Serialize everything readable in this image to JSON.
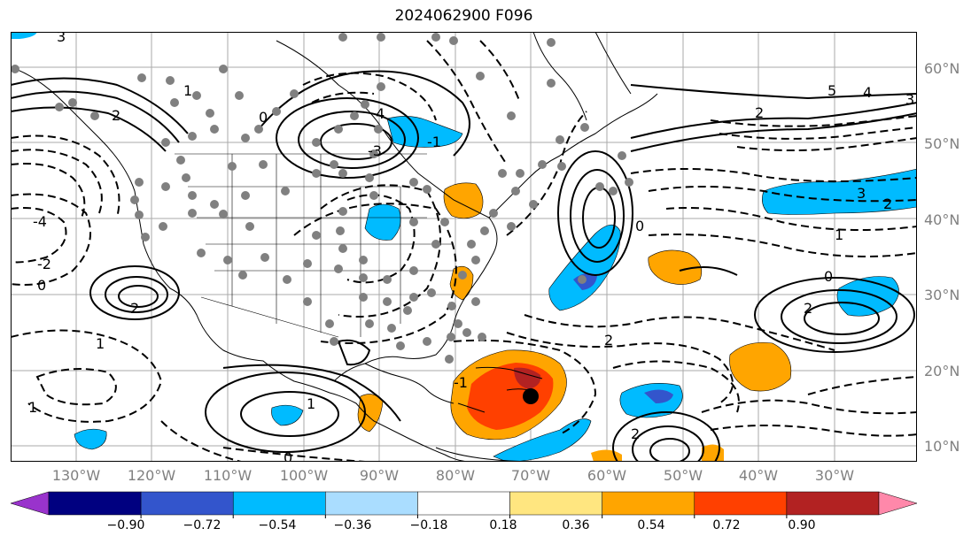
{
  "title": "2024062900 F096",
  "lat_labels": [
    "60°N",
    "50°N",
    "40°N",
    "30°N",
    "20°N",
    "10°N"
  ],
  "lon_labels": [
    "130°W",
    "120°W",
    "110°W",
    "100°W",
    "90°W",
    "80°W",
    "70°W",
    "60°W",
    "50°W",
    "40°W",
    "30°W"
  ],
  "colorbar": {
    "ticks": [
      "−0.90",
      "−0.72",
      "−0.54",
      "−0.36",
      "−0.18",
      "0.18",
      "0.36",
      "0.54",
      "0.72",
      "0.90"
    ],
    "colors": [
      "#9933cc",
      "#000080",
      "#3355cc",
      "#00bbff",
      "#aaddff",
      "#ffffff",
      "#ffe680",
      "#ffa500",
      "#ff4000",
      "#b22222",
      "#ff88aa"
    ]
  },
  "contour_labels": [
    "3",
    "2",
    "1",
    "0",
    "4",
    "5",
    "-1",
    "-2",
    "-3",
    "-4",
    "1",
    "0",
    "2",
    "3",
    "2",
    "0",
    "1",
    "0",
    "1",
    "2",
    "0",
    "4",
    "2",
    "1",
    "0",
    "2",
    "-1",
    "2",
    "3"
  ],
  "storm_marker": "tropical-cyclone-position"
}
